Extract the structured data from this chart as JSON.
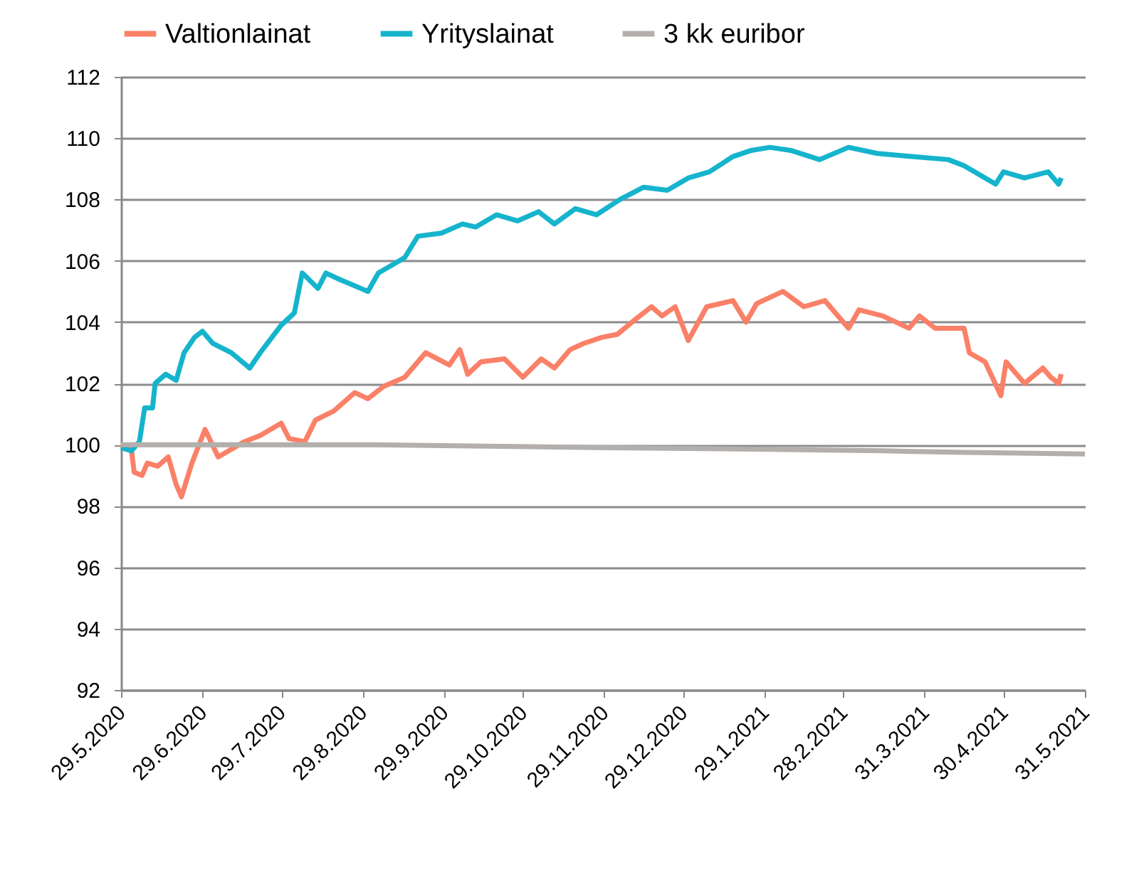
{
  "chart_data": {
    "type": "line",
    "legend": "top",
    "grid": "y",
    "line_style": "solid",
    "marker": "none",
    "ylim": [
      92,
      112
    ],
    "yticks": [
      92,
      94,
      96,
      98,
      100,
      102,
      104,
      106,
      108,
      110,
      112
    ],
    "xlim": [
      "2020-05-29",
      "2021-05-31"
    ],
    "xticks": [
      {
        "value": "2020-05-29",
        "label": "29.5.2020"
      },
      {
        "value": "2020-06-29",
        "label": "29.6.2020"
      },
      {
        "value": "2020-07-29",
        "label": "29.7.2020"
      },
      {
        "value": "2020-08-29",
        "label": "29.8.2020"
      },
      {
        "value": "2020-09-29",
        "label": "29.9.2020"
      },
      {
        "value": "2020-10-29",
        "label": "29.10.2020"
      },
      {
        "value": "2020-11-29",
        "label": "29.11.2020"
      },
      {
        "value": "2020-12-29",
        "label": "29.12.2020"
      },
      {
        "value": "2021-01-29",
        "label": "29.1.2021"
      },
      {
        "value": "2021-02-28",
        "label": "28.2.2021"
      },
      {
        "value": "2021-03-31",
        "label": "31.3.2021"
      },
      {
        "value": "2021-04-30",
        "label": "30.4.2021"
      },
      {
        "value": "2021-05-31",
        "label": "31.5.2021"
      }
    ],
    "series": [
      {
        "name": "Valtionlainat",
        "color": "#fa8068",
        "x": [
          "2020-05-29",
          "2020-06-02",
          "2020-06-03",
          "2020-06-06",
          "2020-06-08",
          "2020-06-12",
          "2020-06-16",
          "2020-06-19",
          "2020-06-21",
          "2020-06-25",
          "2020-06-30",
          "2020-07-05",
          "2020-07-09",
          "2020-07-15",
          "2020-07-21",
          "2020-07-29",
          "2020-08-01",
          "2020-08-07",
          "2020-08-11",
          "2020-08-18",
          "2020-08-26",
          "2020-08-31",
          "2020-09-06",
          "2020-09-14",
          "2020-09-22",
          "2020-10-01",
          "2020-10-05",
          "2020-10-08",
          "2020-10-13",
          "2020-10-22",
          "2020-10-29",
          "2020-11-05",
          "2020-11-10",
          "2020-11-16",
          "2020-11-21",
          "2020-11-28",
          "2020-12-04",
          "2020-12-11",
          "2020-12-17",
          "2020-12-21",
          "2020-12-26",
          "2020-12-31",
          "2021-01-07",
          "2021-01-17",
          "2021-01-22",
          "2021-01-26",
          "2021-02-05",
          "2021-02-13",
          "2021-02-21",
          "2021-03-02",
          "2021-03-06",
          "2021-03-15",
          "2021-03-25",
          "2021-03-29",
          "2021-04-04",
          "2021-04-15",
          "2021-04-17",
          "2021-04-23",
          "2021-04-29",
          "2021-05-01",
          "2021-05-08",
          "2021-05-15",
          "2021-05-18",
          "2021-05-21",
          "2021-05-22"
        ],
        "values": [
          100.0,
          99.8,
          99.1,
          99.0,
          99.4,
          99.3,
          99.6,
          98.7,
          98.3,
          99.4,
          100.5,
          99.6,
          99.8,
          100.1,
          100.3,
          100.7,
          100.2,
          100.1,
          100.8,
          101.1,
          101.7,
          101.5,
          101.9,
          102.2,
          103.0,
          102.6,
          103.1,
          102.3,
          102.7,
          102.8,
          102.2,
          102.8,
          102.5,
          103.1,
          103.3,
          103.5,
          103.6,
          104.1,
          104.5,
          104.2,
          104.5,
          103.4,
          104.5,
          104.7,
          104.0,
          104.6,
          105.0,
          104.5,
          104.7,
          103.8,
          104.4,
          104.2,
          103.8,
          104.2,
          103.8,
          103.8,
          103.0,
          102.7,
          101.6,
          102.7,
          102.0,
          102.5,
          102.2,
          102.0,
          102.3
        ]
      },
      {
        "name": "Yrityslainat",
        "color": "#16b4cc",
        "x": [
          "2020-05-29",
          "2020-06-02",
          "2020-06-05",
          "2020-06-07",
          "2020-06-10",
          "2020-06-11",
          "2020-06-15",
          "2020-06-19",
          "2020-06-22",
          "2020-06-26",
          "2020-06-29",
          "2020-07-03",
          "2020-07-10",
          "2020-07-17",
          "2020-07-21",
          "2020-07-29",
          "2020-08-03",
          "2020-08-06",
          "2020-08-12",
          "2020-08-15",
          "2020-08-20",
          "2020-08-31",
          "2020-09-04",
          "2020-09-14",
          "2020-09-19",
          "2020-09-28",
          "2020-10-06",
          "2020-10-11",
          "2020-10-19",
          "2020-10-27",
          "2020-11-04",
          "2020-11-10",
          "2020-11-18",
          "2020-11-26",
          "2020-12-05",
          "2020-12-14",
          "2020-12-23",
          "2020-12-31",
          "2021-01-08",
          "2021-01-17",
          "2021-01-24",
          "2021-01-31",
          "2021-02-08",
          "2021-02-19",
          "2021-03-02",
          "2021-03-13",
          "2021-03-26",
          "2021-04-09",
          "2021-04-15",
          "2021-04-27",
          "2021-04-30",
          "2021-05-08",
          "2021-05-17",
          "2021-05-21",
          "2021-05-22"
        ],
        "values": [
          99.9,
          99.8,
          100.1,
          101.2,
          101.2,
          102.0,
          102.3,
          102.1,
          103.0,
          103.5,
          103.7,
          103.3,
          103.0,
          102.5,
          103.0,
          103.9,
          104.3,
          105.6,
          105.1,
          105.6,
          105.4,
          105.0,
          105.6,
          106.1,
          106.8,
          106.9,
          107.2,
          107.1,
          107.5,
          107.3,
          107.6,
          107.2,
          107.7,
          107.5,
          108.0,
          108.4,
          108.3,
          108.7,
          108.9,
          109.4,
          109.6,
          109.7,
          109.6,
          109.3,
          109.7,
          109.5,
          109.4,
          109.3,
          109.1,
          108.5,
          108.9,
          108.7,
          108.9,
          108.5,
          108.7
        ]
      },
      {
        "name": "3 kk euribor",
        "color": "#b3afac",
        "x": [
          "2020-05-29",
          "2020-09-01",
          "2020-10-15",
          "2020-12-01",
          "2021-02-01",
          "2021-03-15",
          "2021-04-15",
          "2021-05-31"
        ],
        "values": [
          100.0,
          100.0,
          99.95,
          99.9,
          99.85,
          99.8,
          99.75,
          99.7
        ]
      }
    ]
  }
}
